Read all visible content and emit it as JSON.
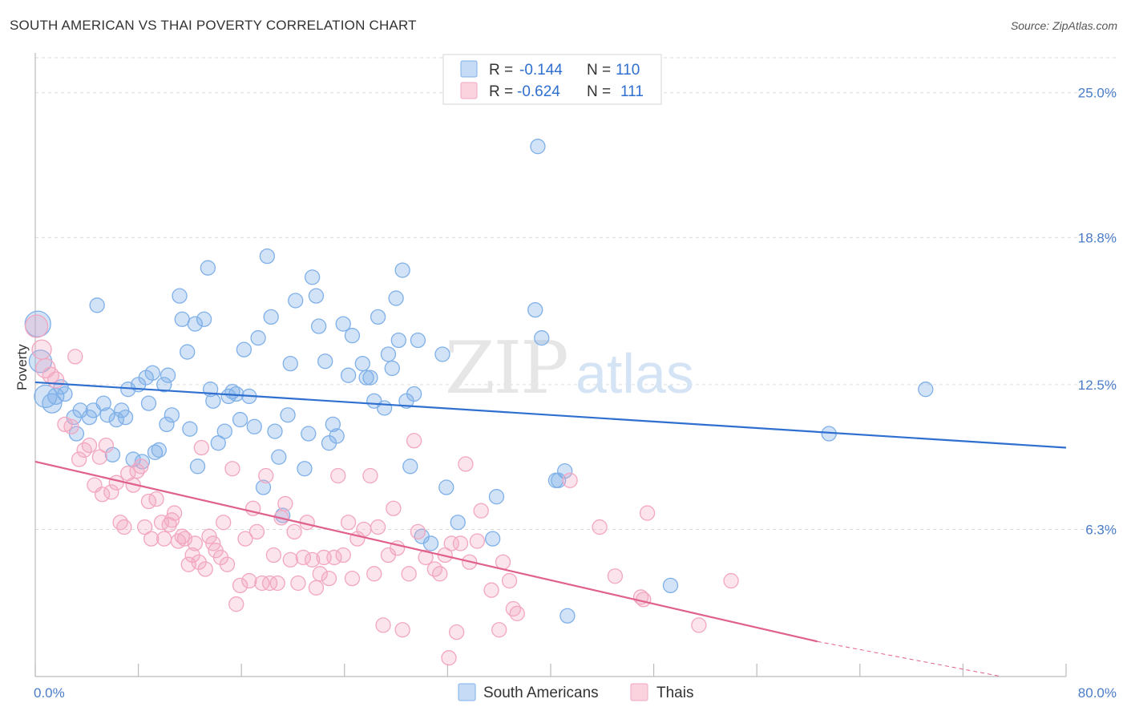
{
  "header": {
    "title": "SOUTH AMERICAN VS THAI POVERTY CORRELATION CHART",
    "source": "Source: ZipAtlas.com"
  },
  "watermark": {
    "zip": "ZIP",
    "atlas": "atlas"
  },
  "legend": {
    "rows": [
      {
        "r_label": "R =",
        "r_value": "-0.144",
        "n_label": "N =",
        "n_value": "110",
        "color": "#a9c8f0"
      },
      {
        "r_label": "R =",
        "r_value": "-0.624",
        "n_label": "N =",
        "n_value": "111",
        "color": "#f5b8cc"
      }
    ]
  },
  "bottom_legend": {
    "items": [
      {
        "label": "South Americans",
        "color": "#a9c8f0"
      },
      {
        "label": "Thais",
        "color": "#f5b8cc"
      }
    ]
  },
  "chart_data": {
    "type": "scatter",
    "title": "SOUTH AMERICAN VS THAI POVERTY CORRELATION CHART",
    "xlabel": "",
    "ylabel": "Poverty",
    "xlim": [
      0,
      80
    ],
    "ylim": [
      0,
      26.5
    ],
    "x_tick_labels": [
      "0.0%",
      "80.0%"
    ],
    "y_ticks": [
      6.3,
      12.5,
      18.8,
      25.0
    ],
    "y_tick_labels": [
      "6.3%",
      "12.5%",
      "18.8%",
      "25.0%"
    ],
    "grid": "horizontal dashed",
    "legend_position": "top-center",
    "series": [
      {
        "name": "South Americans",
        "color": "#7fb0e8",
        "line_color": "#2f6fcf",
        "r": -0.144,
        "n": 110,
        "trend": {
          "x": [
            0,
            80
          ],
          "y": [
            12.6,
            9.8
          ]
        },
        "points": [
          [
            0.2,
            15.1,
            16
          ],
          [
            0.4,
            13.5,
            14
          ],
          [
            0.8,
            12.0,
            14
          ],
          [
            1.3,
            11.7,
            12
          ],
          [
            1.6,
            12.0,
            10
          ],
          [
            2.0,
            12.4,
            9
          ],
          [
            2.3,
            12.1,
            9
          ],
          [
            3.0,
            11.1,
            9
          ],
          [
            3.2,
            10.4,
            9
          ],
          [
            3.5,
            11.4,
            9
          ],
          [
            4.2,
            11.1,
            9
          ],
          [
            4.5,
            11.4,
            9
          ],
          [
            4.8,
            15.9,
            9
          ],
          [
            5.3,
            11.7,
            9
          ],
          [
            5.6,
            11.2,
            9
          ],
          [
            6.0,
            9.5,
            9
          ],
          [
            6.3,
            11.0,
            9
          ],
          [
            6.7,
            11.4,
            9
          ],
          [
            7.0,
            11.1,
            9
          ],
          [
            7.2,
            12.3,
            9
          ],
          [
            7.6,
            9.3,
            9
          ],
          [
            8.0,
            12.5,
            9
          ],
          [
            8.3,
            9.2,
            9
          ],
          [
            8.6,
            12.8,
            9
          ],
          [
            8.8,
            11.7,
            9
          ],
          [
            9.1,
            13.0,
            9
          ],
          [
            9.3,
            9.6,
            9
          ],
          [
            9.6,
            9.7,
            9
          ],
          [
            10.0,
            12.5,
            9
          ],
          [
            10.3,
            12.9,
            9
          ],
          [
            10.6,
            11.2,
            9
          ],
          [
            10.2,
            10.8,
            9
          ],
          [
            11.2,
            16.3,
            9
          ],
          [
            11.4,
            15.3,
            9
          ],
          [
            11.8,
            13.9,
            9
          ],
          [
            12.0,
            10.6,
            9
          ],
          [
            12.4,
            15.1,
            9
          ],
          [
            12.6,
            9.0,
            9
          ],
          [
            13.1,
            15.3,
            9
          ],
          [
            13.4,
            17.5,
            9
          ],
          [
            13.6,
            12.3,
            9
          ],
          [
            13.8,
            11.8,
            9
          ],
          [
            14.2,
            10.0,
            9
          ],
          [
            14.7,
            10.5,
            9
          ],
          [
            15.0,
            12.0,
            9
          ],
          [
            15.3,
            12.2,
            9
          ],
          [
            15.6,
            12.1,
            9
          ],
          [
            15.9,
            11.0,
            9
          ],
          [
            16.2,
            14.0,
            9
          ],
          [
            16.6,
            12.0,
            9
          ],
          [
            17.0,
            10.7,
            9
          ],
          [
            17.3,
            14.5,
            9
          ],
          [
            17.7,
            8.1,
            9
          ],
          [
            18.0,
            18.0,
            9
          ],
          [
            18.3,
            15.4,
            9
          ],
          [
            18.6,
            10.5,
            9
          ],
          [
            18.9,
            9.4,
            9
          ],
          [
            19.2,
            6.9,
            9
          ],
          [
            19.6,
            11.2,
            9
          ],
          [
            19.8,
            13.4,
            9
          ],
          [
            20.2,
            16.1,
            9
          ],
          [
            20.9,
            8.9,
            9
          ],
          [
            21.2,
            10.4,
            9
          ],
          [
            21.5,
            17.1,
            9
          ],
          [
            21.8,
            16.3,
            9
          ],
          [
            22.0,
            15.0,
            9
          ],
          [
            22.5,
            13.5,
            9
          ],
          [
            22.8,
            10.0,
            9
          ],
          [
            23.1,
            10.8,
            9
          ],
          [
            23.4,
            10.3,
            9
          ],
          [
            23.9,
            15.1,
            9
          ],
          [
            24.3,
            12.9,
            9
          ],
          [
            24.6,
            14.6,
            9
          ],
          [
            25.4,
            13.4,
            9
          ],
          [
            25.7,
            12.8,
            9
          ],
          [
            26.0,
            12.8,
            9
          ],
          [
            26.3,
            11.8,
            9
          ],
          [
            26.6,
            15.4,
            9
          ],
          [
            27.1,
            11.5,
            9
          ],
          [
            27.4,
            13.8,
            9
          ],
          [
            27.7,
            13.2,
            9
          ],
          [
            28.0,
            16.2,
            9
          ],
          [
            28.2,
            14.4,
            9
          ],
          [
            28.5,
            17.4,
            9
          ],
          [
            28.8,
            11.8,
            9
          ],
          [
            29.1,
            9.0,
            9
          ],
          [
            29.4,
            12.1,
            9
          ],
          [
            29.7,
            14.4,
            9
          ],
          [
            30.0,
            6.0,
            9
          ],
          [
            30.7,
            5.7,
            9
          ],
          [
            31.6,
            13.8,
            9
          ],
          [
            31.9,
            8.1,
            9
          ],
          [
            32.8,
            6.6,
            9
          ],
          [
            35.5,
            5.9,
            9
          ],
          [
            35.8,
            7.7,
            9
          ],
          [
            38.8,
            15.7,
            9
          ],
          [
            39.3,
            14.5,
            9
          ],
          [
            40.4,
            8.4,
            9
          ],
          [
            40.6,
            8.4,
            9
          ],
          [
            41.1,
            8.8,
            9
          ],
          [
            41.3,
            2.6,
            9
          ],
          [
            39.0,
            22.7,
            9
          ],
          [
            49.3,
            3.9,
            9
          ],
          [
            61.6,
            10.4,
            9
          ],
          [
            69.1,
            12.3,
            9
          ]
        ]
      },
      {
        "name": "Thais",
        "color": "#f2a6c0",
        "line_color": "#e0608e",
        "r": -0.624,
        "n": 111,
        "trend": {
          "x": [
            0,
            60.7
          ],
          "y": [
            9.2,
            1.5
          ]
        },
        "trend_dashed": {
          "x": [
            60.7,
            75
          ],
          "y": [
            1.5,
            -0.3
          ]
        },
        "points": [
          [
            0.1,
            15.0,
            14
          ],
          [
            0.5,
            14.0,
            12
          ],
          [
            0.8,
            13.2,
            12
          ],
          [
            1.2,
            12.9,
            10
          ],
          [
            1.6,
            12.7,
            10
          ],
          [
            2.3,
            10.8,
            9
          ],
          [
            2.8,
            10.7,
            9
          ],
          [
            3.1,
            13.7,
            9
          ],
          [
            3.4,
            9.3,
            9
          ],
          [
            3.8,
            9.7,
            9
          ],
          [
            4.2,
            9.9,
            9
          ],
          [
            4.6,
            8.2,
            9
          ],
          [
            5.0,
            9.4,
            9
          ],
          [
            5.2,
            7.8,
            9
          ],
          [
            5.5,
            9.9,
            9
          ],
          [
            5.9,
            7.9,
            9
          ],
          [
            6.3,
            8.3,
            9
          ],
          [
            6.6,
            6.6,
            9
          ],
          [
            6.9,
            6.4,
            9
          ],
          [
            7.2,
            8.7,
            9
          ],
          [
            7.6,
            8.2,
            9
          ],
          [
            7.9,
            8.8,
            9
          ],
          [
            8.2,
            9.0,
            9
          ],
          [
            8.5,
            6.4,
            9
          ],
          [
            8.8,
            7.5,
            9
          ],
          [
            9.0,
            5.9,
            9
          ],
          [
            9.4,
            7.6,
            9
          ],
          [
            9.8,
            6.6,
            9
          ],
          [
            10.0,
            5.9,
            9
          ],
          [
            10.4,
            6.5,
            9
          ],
          [
            10.6,
            6.7,
            9
          ],
          [
            10.8,
            7.0,
            9
          ],
          [
            11.1,
            5.8,
            9
          ],
          [
            11.4,
            6.0,
            9
          ],
          [
            11.6,
            5.9,
            9
          ],
          [
            11.9,
            4.8,
            9
          ],
          [
            12.2,
            5.2,
            9
          ],
          [
            12.4,
            5.7,
            9
          ],
          [
            12.7,
            4.9,
            9
          ],
          [
            12.9,
            9.8,
            9
          ],
          [
            13.2,
            4.6,
            9
          ],
          [
            13.5,
            6.0,
            9
          ],
          [
            13.8,
            5.7,
            9
          ],
          [
            14.0,
            5.4,
            9
          ],
          [
            14.4,
            5.1,
            9
          ],
          [
            14.6,
            6.6,
            9
          ],
          [
            14.9,
            4.8,
            9
          ],
          [
            15.3,
            8.9,
            9
          ],
          [
            15.6,
            3.1,
            9
          ],
          [
            15.9,
            3.9,
            9
          ],
          [
            16.3,
            5.9,
            9
          ],
          [
            16.6,
            4.1,
            9
          ],
          [
            16.9,
            7.2,
            9
          ],
          [
            17.2,
            6.2,
            9
          ],
          [
            17.6,
            4.0,
            9
          ],
          [
            17.9,
            8.6,
            9
          ],
          [
            18.2,
            4.0,
            9
          ],
          [
            18.5,
            5.2,
            9
          ],
          [
            18.8,
            4.0,
            9
          ],
          [
            19.1,
            6.8,
            9
          ],
          [
            19.4,
            7.4,
            9
          ],
          [
            19.8,
            5.0,
            9
          ],
          [
            20.1,
            6.2,
            9
          ],
          [
            20.4,
            4.0,
            9
          ],
          [
            20.8,
            5.1,
            9
          ],
          [
            21.1,
            6.6,
            9
          ],
          [
            21.5,
            5.0,
            9
          ],
          [
            21.8,
            3.8,
            9
          ],
          [
            22.1,
            4.4,
            9
          ],
          [
            22.4,
            5.1,
            9
          ],
          [
            22.8,
            4.2,
            9
          ],
          [
            23.2,
            5.1,
            9
          ],
          [
            23.5,
            8.6,
            9
          ],
          [
            23.9,
            5.2,
            9
          ],
          [
            24.3,
            6.6,
            9
          ],
          [
            24.6,
            4.2,
            9
          ],
          [
            25.0,
            5.9,
            9
          ],
          [
            25.5,
            6.3,
            9
          ],
          [
            26.0,
            8.6,
            9
          ],
          [
            26.3,
            4.4,
            9
          ],
          [
            26.6,
            6.4,
            9
          ],
          [
            27.0,
            2.2,
            9
          ],
          [
            27.4,
            5.2,
            9
          ],
          [
            27.8,
            7.2,
            9
          ],
          [
            28.1,
            5.5,
            9
          ],
          [
            28.5,
            2.0,
            9
          ],
          [
            29.0,
            4.4,
            9
          ],
          [
            29.4,
            10.1,
            9
          ],
          [
            29.7,
            6.2,
            9
          ],
          [
            30.3,
            5.1,
            9
          ],
          [
            31.0,
            4.6,
            9
          ],
          [
            31.4,
            4.4,
            9
          ],
          [
            31.8,
            5.2,
            9
          ],
          [
            32.3,
            5.7,
            9
          ],
          [
            32.7,
            1.9,
            9
          ],
          [
            33.0,
            5.7,
            9
          ],
          [
            33.4,
            9.1,
            9
          ],
          [
            33.7,
            4.9,
            9
          ],
          [
            34.3,
            5.8,
            9
          ],
          [
            34.6,
            7.1,
            9
          ],
          [
            35.4,
            3.7,
            9
          ],
          [
            36.3,
            4.9,
            9
          ],
          [
            36.8,
            4.1,
            9
          ],
          [
            37.1,
            2.9,
            9
          ],
          [
            37.4,
            2.7,
            9
          ],
          [
            43.8,
            6.4,
            9
          ],
          [
            45.0,
            4.3,
            9
          ],
          [
            47.0,
            3.4,
            9
          ],
          [
            47.5,
            7.0,
            9
          ],
          [
            51.5,
            2.2,
            9
          ],
          [
            54.0,
            4.1,
            9
          ],
          [
            32.1,
            0.8,
            9
          ],
          [
            36.0,
            2.0,
            9
          ],
          [
            41.5,
            8.4,
            9
          ],
          [
            47.2,
            3.3,
            9
          ]
        ]
      }
    ]
  }
}
